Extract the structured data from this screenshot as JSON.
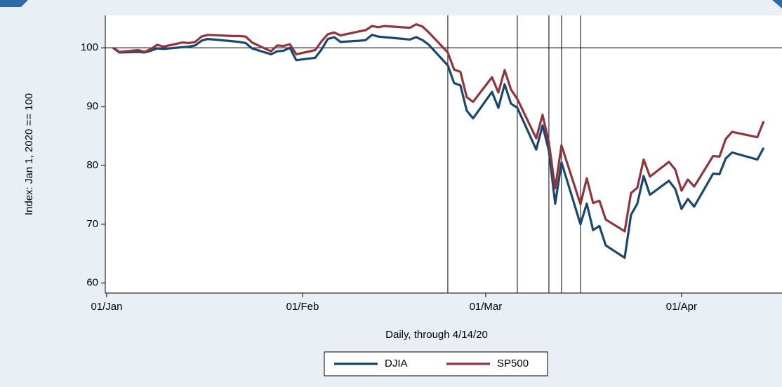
{
  "chart_data": {
    "type": "line",
    "x_label": "Daily, through 4/14/20",
    "y_label": "Index: Jan 1, 2020 == 100",
    "x": [
      2,
      3,
      6,
      7,
      8,
      9,
      10,
      13,
      14,
      15,
      16,
      17,
      21,
      22,
      23,
      24,
      27,
      28,
      29,
      30,
      31,
      34,
      35,
      36,
      37,
      38,
      41,
      42,
      43,
      44,
      45,
      49,
      50,
      51,
      52,
      55,
      56,
      57,
      58,
      59,
      62,
      63,
      64,
      65,
      66,
      69,
      70,
      71,
      72,
      73,
      76,
      77,
      78,
      79,
      80,
      83,
      84,
      85,
      86,
      87,
      90,
      91,
      92,
      93,
      94,
      97,
      98,
      99,
      100,
      104,
      105
    ],
    "series": [
      {
        "name": "DJIA",
        "color": "#1a476f",
        "values": [
          100,
          99.2,
          99.3,
          99.2,
          99.5,
          99.9,
          99.8,
          100.1,
          100.2,
          100.4,
          101.2,
          101.5,
          101.1,
          101,
          100.8,
          99.9,
          98.9,
          99.4,
          99.5,
          100,
          97.9,
          98.3,
          99.7,
          101.5,
          101.8,
          101,
          101.2,
          101.3,
          102.2,
          101.9,
          101.8,
          101.4,
          101.8,
          101.3,
          100.5,
          97,
          94,
          93.6,
          89.3,
          88,
          92.5,
          89.8,
          93.8,
          90.5,
          89.8,
          82.7,
          86.8,
          82.5,
          73.5,
          80.5,
          70,
          73.5,
          69,
          69.7,
          66.4,
          64.3,
          71.6,
          73.5,
          78.2,
          75,
          77.4,
          76,
          72.6,
          74.3,
          73,
          78.6,
          78.5,
          81.2,
          82.2,
          81,
          83
        ]
      },
      {
        "name": "SP500",
        "color": "#90353b",
        "values": [
          100,
          99.3,
          99.6,
          99.3,
          99.8,
          100.5,
          100.2,
          100.9,
          100.8,
          101,
          101.9,
          102.2,
          102,
          102,
          101.9,
          100.9,
          99.4,
          100.4,
          100.3,
          100.6,
          98.9,
          99.6,
          101.1,
          102.3,
          102.6,
          102.1,
          102.8,
          103,
          103.7,
          103.5,
          103.7,
          103.4,
          104,
          103.6,
          102.6,
          99.2,
          96.3,
          95.9,
          91.6,
          90.8,
          95,
          92.4,
          96.2,
          92.9,
          91.3,
          84.6,
          88.6,
          83.9,
          76.1,
          83.4,
          73.4,
          77.8,
          73.6,
          74,
          70.8,
          68.8,
          75.3,
          76.2,
          81,
          78.1,
          80.6,
          79.3,
          75.7,
          77.6,
          76.4,
          81.6,
          81.5,
          84.5,
          85.7,
          84.8,
          87.5
        ]
      }
    ],
    "xlim": [
      0.78,
      107.9
    ],
    "xticks": [
      {
        "value": 1,
        "label": "01/Jan"
      },
      {
        "value": 32,
        "label": "01/Feb"
      },
      {
        "value": 61,
        "label": "01/Mar"
      },
      {
        "value": 92,
        "label": "01/Apr"
      }
    ],
    "ylim": [
      58.3,
      105.5
    ],
    "yticks": [
      60,
      70,
      80,
      90,
      100
    ],
    "xlines": [
      55,
      66,
      71,
      73,
      76
    ],
    "ylines": [
      100
    ],
    "legend": "bottom"
  }
}
